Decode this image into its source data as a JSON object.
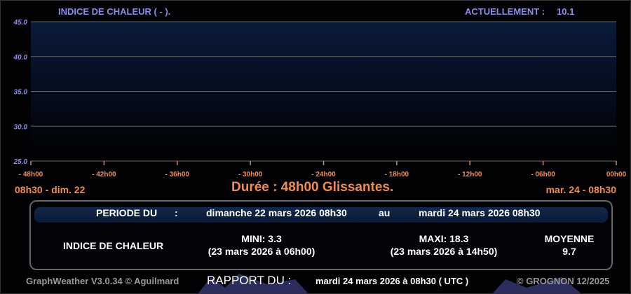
{
  "header": {
    "title": "INDICE DE CHALEUR ( - ).",
    "current_label": "ACTUELLEMENT :",
    "current_value": "10.1"
  },
  "chart_data": {
    "type": "line",
    "title": "INDICE DE CHALEUR ( - ).",
    "ylim": [
      25.0,
      45.0
    ],
    "y_ticks": [
      "45.0",
      "40.0",
      "35.0",
      "30.0",
      "25.0"
    ],
    "x_ticks": [
      "- 48h00",
      "- 42h00",
      "- 36h00",
      "- 30h00",
      "- 24h00",
      "- 18h00",
      "- 12h00",
      "- 06h00",
      "00h00"
    ],
    "grid": true,
    "series": [],
    "start_label": "08h30 - dim. 22",
    "end_label": "mar. 24 - 08h30",
    "duration_label": "Durée : 48h00 Glissantes."
  },
  "summary": {
    "period_label": "PERIODE DU",
    "colon": ":",
    "period_start": "dimanche 22 mars 2026 08h30",
    "au": "au",
    "period_end": "mardi 24 mars 2026 08h30",
    "measure": "INDICE DE CHALEUR",
    "mini": "MINI:  3.3",
    "mini_date": "(23 mars 2026 à 06h00)",
    "maxi": "MAXI:  18.3",
    "maxi_date": "(23 mars 2026 à 14h50)",
    "moyenne_label": "MOYENNE",
    "moyenne": "9.7"
  },
  "footer": {
    "app": "GraphWeather V3.0.34 © Aguilmard",
    "rapport_label": "RAPPORT DU :",
    "rapport_date": "mardi 24 mars 2026 à 08h30 ( UTC )",
    "copyright": "© GROGNON 12/2025"
  },
  "colors": {
    "axis_labels": "#8c8ce6",
    "time_labels": "#f08c50",
    "plot_top": "#0a1a3a"
  }
}
